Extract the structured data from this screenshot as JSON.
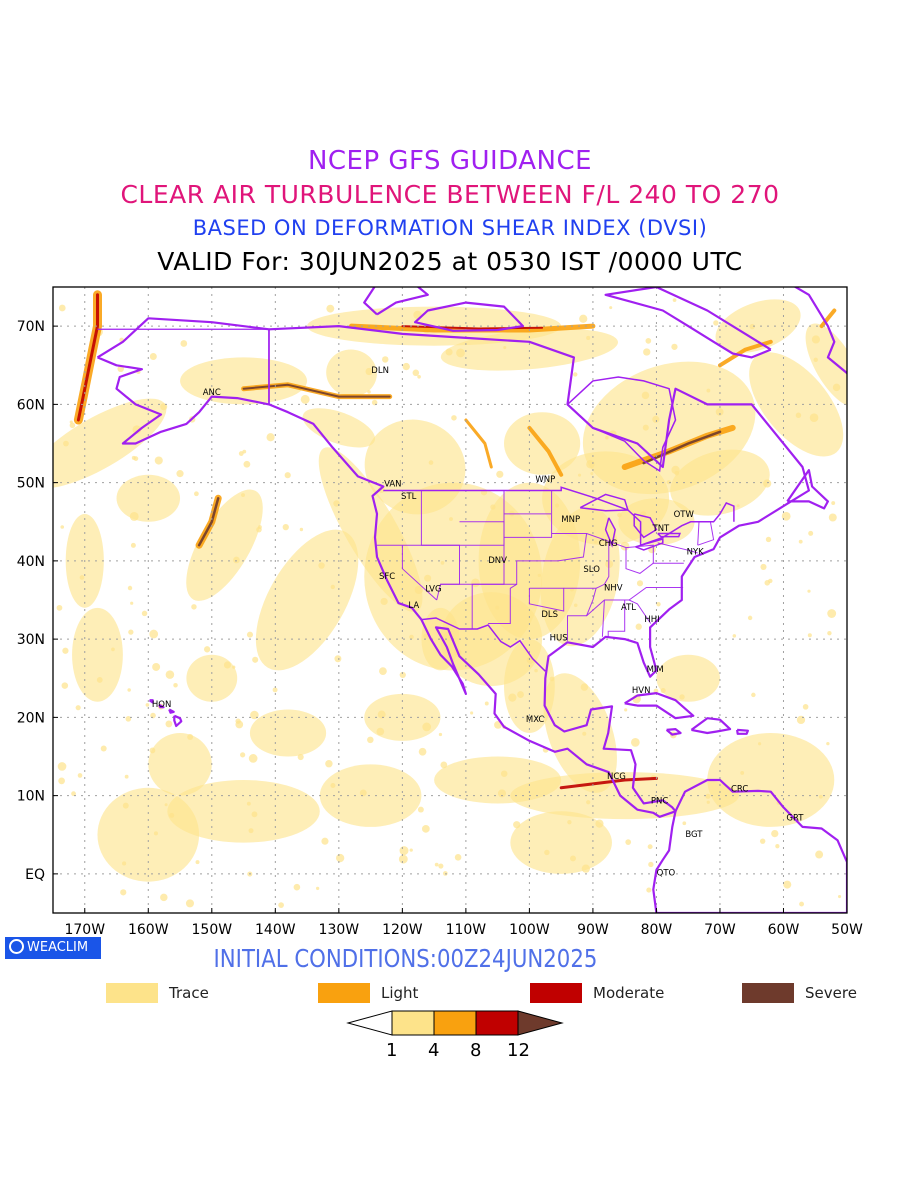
{
  "titles": {
    "line1": "NCEP GFS GUIDANCE",
    "line2": "CLEAR AIR TURBULENCE BETWEEN F/L 240 TO 270",
    "line3": "BASED ON DEFORMATION SHEAR INDEX (DVSI)",
    "line4": "VALID For: 30JUN2025 at 0530 IST /0000 UTC"
  },
  "logo": {
    "text": "WEACLIM",
    "icon": "circle-logo-icon"
  },
  "initial_conditions": "INITIAL CONDITIONS:00Z24JUN2025",
  "axes": {
    "lat_labels": [
      "70N",
      "60N",
      "50N",
      "40N",
      "30N",
      "20N",
      "10N",
      "EQ"
    ],
    "lon_labels": [
      "170W",
      "160W",
      "150W",
      "140W",
      "130W",
      "120W",
      "110W",
      "100W",
      "90W",
      "80W",
      "70W",
      "60W",
      "50W"
    ],
    "lat_range": [
      -5,
      75
    ],
    "lon_range": [
      -175,
      -50
    ]
  },
  "stations": [
    {
      "name": "ANC",
      "lat": 61.2,
      "lon": -150.0
    },
    {
      "name": "DLN",
      "lat": 64.0,
      "lon": -123.5
    },
    {
      "name": "VAN",
      "lat": 49.5,
      "lon": -121.5
    },
    {
      "name": "STL",
      "lat": 47.9,
      "lon": -119.0
    },
    {
      "name": "WNP",
      "lat": 50.1,
      "lon": -97.5
    },
    {
      "name": "MNP",
      "lat": 45.0,
      "lon": -93.5
    },
    {
      "name": "TNT",
      "lat": 43.8,
      "lon": -79.3
    },
    {
      "name": "OTW",
      "lat": 45.6,
      "lon": -75.7
    },
    {
      "name": "CHG",
      "lat": 41.9,
      "lon": -87.6
    },
    {
      "name": "NYK",
      "lat": 40.8,
      "lon": -73.9
    },
    {
      "name": "DNV",
      "lat": 39.7,
      "lon": -105.0
    },
    {
      "name": "SFC",
      "lat": 37.7,
      "lon": -122.4
    },
    {
      "name": "LVG",
      "lat": 36.1,
      "lon": -115.1
    },
    {
      "name": "SLO",
      "lat": 38.6,
      "lon": -90.2
    },
    {
      "name": "NHV",
      "lat": 36.2,
      "lon": -86.8
    },
    {
      "name": "LA",
      "lat": 34.0,
      "lon": -118.2
    },
    {
      "name": "ATL",
      "lat": 33.7,
      "lon": -84.4
    },
    {
      "name": "DLS",
      "lat": 32.8,
      "lon": -96.8
    },
    {
      "name": "HHI",
      "lat": 32.2,
      "lon": -80.7
    },
    {
      "name": "HUS",
      "lat": 29.8,
      "lon": -95.4
    },
    {
      "name": "MIM",
      "lat": 25.8,
      "lon": -80.2
    },
    {
      "name": "HVN",
      "lat": 23.1,
      "lon": -82.4
    },
    {
      "name": "HON",
      "lat": 21.3,
      "lon": -157.9
    },
    {
      "name": "MXC",
      "lat": 19.4,
      "lon": -99.1
    },
    {
      "name": "NCG",
      "lat": 12.1,
      "lon": -86.3
    },
    {
      "name": "CRC",
      "lat": 10.5,
      "lon": -66.9
    },
    {
      "name": "PNC",
      "lat": 9.0,
      "lon": -79.5
    },
    {
      "name": "GRT",
      "lat": 6.8,
      "lon": -58.2
    },
    {
      "name": "BGT",
      "lat": 4.7,
      "lon": -74.1
    },
    {
      "name": "QTO",
      "lat": -0.2,
      "lon": -78.5
    }
  ],
  "legend": [
    {
      "label": "Trace",
      "color": "#fde38a"
    },
    {
      "label": "Light",
      "color": "#f9a10f"
    },
    {
      "label": "Moderate",
      "color": "#c00000"
    },
    {
      "label": "Severe",
      "color": "#6e3a2c"
    }
  ],
  "colorbar": {
    "ticks": [
      "1",
      "4",
      "8",
      "12"
    ],
    "colors": [
      "#ffffff",
      "#fde38a",
      "#f9a10f",
      "#c00000",
      "#6e3a2c"
    ]
  },
  "colors": {
    "coastline": "#a020f0",
    "grid": "#a0a0a0",
    "trace": "#fde38a",
    "light": "#f9a10f",
    "moderate": "#c00000",
    "severe": "#6e3a2c"
  }
}
